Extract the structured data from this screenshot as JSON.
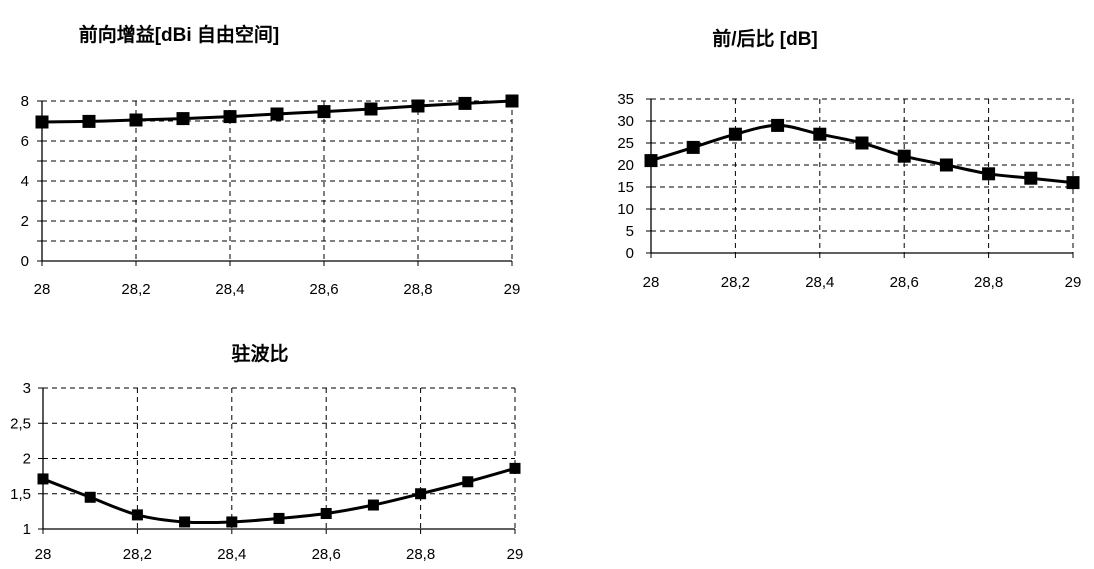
{
  "chart_data": [
    {
      "type": "line",
      "title": "前向增益[dBi 自由空间]",
      "x": [
        28,
        28.1,
        28.2,
        28.3,
        28.4,
        28.5,
        28.6,
        28.7,
        28.8,
        28.9,
        29
      ],
      "series": [
        {
          "values": [
            6.95,
            6.98,
            7.05,
            7.12,
            7.22,
            7.35,
            7.47,
            7.6,
            7.75,
            7.88,
            8.0
          ]
        }
      ],
      "xlim": [
        28,
        29
      ],
      "ylim": [
        0,
        8
      ],
      "y_grid_step": 1,
      "y_ticks": [
        0,
        2,
        4,
        6,
        8
      ],
      "y_tick_labels": [
        "0",
        "2",
        "4",
        "6",
        "8"
      ],
      "x_ticks": [
        28,
        28.2,
        28.4,
        28.6,
        28.8,
        29
      ],
      "x_tick_labels": [
        "28",
        "28,2",
        "28,4",
        "28,6",
        "28,8",
        "29"
      ],
      "grid": true,
      "legend": "none",
      "marker": "square",
      "smooth": true,
      "line_color": "#000000"
    },
    {
      "type": "line",
      "title": "前/后比 [dB]",
      "x": [
        28,
        28.1,
        28.2,
        28.3,
        28.4,
        28.5,
        28.6,
        28.7,
        28.8,
        28.9,
        29
      ],
      "series": [
        {
          "values": [
            21,
            24,
            27,
            29,
            27,
            25,
            22,
            20,
            18,
            17,
            16
          ]
        }
      ],
      "xlim": [
        28,
        29
      ],
      "ylim": [
        0,
        35
      ],
      "y_grid_step": 5,
      "y_ticks": [
        0,
        5,
        10,
        15,
        20,
        25,
        30,
        35
      ],
      "y_tick_labels": [
        "0",
        "5",
        "10",
        "15",
        "20",
        "25",
        "30",
        "35"
      ],
      "x_ticks": [
        28,
        28.2,
        28.4,
        28.6,
        28.8,
        29
      ],
      "x_tick_labels": [
        "28",
        "28,2",
        "28,4",
        "28,6",
        "28,8",
        "29"
      ],
      "grid": true,
      "legend": "none",
      "marker": "square",
      "smooth": true,
      "line_color": "#000000"
    },
    {
      "type": "line",
      "title": "驻波比",
      "x": [
        28,
        28.1,
        28.2,
        28.3,
        28.4,
        28.5,
        28.6,
        28.7,
        28.8,
        28.9,
        29
      ],
      "series": [
        {
          "values": [
            1.71,
            1.45,
            1.2,
            1.1,
            1.1,
            1.15,
            1.22,
            1.34,
            1.5,
            1.67,
            1.86
          ]
        }
      ],
      "xlim": [
        28,
        29
      ],
      "ylim": [
        1,
        3
      ],
      "y_grid_step": 0.5,
      "y_ticks": [
        1,
        1.5,
        2,
        2.5,
        3
      ],
      "y_tick_labels": [
        "1",
        "1,5",
        "2",
        "2,5",
        "3"
      ],
      "x_ticks": [
        28,
        28.2,
        28.4,
        28.6,
        28.8,
        29
      ],
      "x_tick_labels": [
        "28",
        "28,2",
        "28,4",
        "28,6",
        "28,8",
        "29"
      ],
      "grid": true,
      "legend": "none",
      "marker": "square",
      "smooth": true,
      "line_color": "#000000"
    }
  ]
}
